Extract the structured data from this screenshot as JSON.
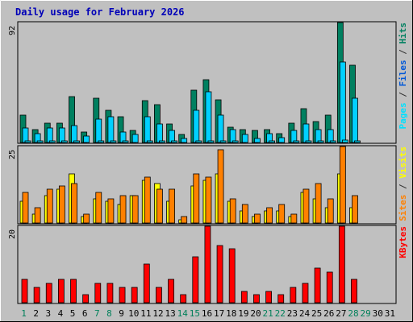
{
  "chart_data": {
    "type": "bar",
    "title": "Daily usage for February 2026",
    "categories": [
      "1",
      "2",
      "3",
      "4",
      "5",
      "6",
      "7",
      "8",
      "9",
      "10",
      "11",
      "12",
      "13",
      "14",
      "15",
      "16",
      "17",
      "18",
      "19",
      "20",
      "21",
      "22",
      "23",
      "24",
      "25",
      "26",
      "27",
      "28",
      "29",
      "30",
      "31"
    ],
    "weekend_days": [
      "1",
      "7",
      "8",
      "14",
      "15",
      "21",
      "22",
      "28",
      "29"
    ],
    "panels": [
      {
        "id": "hits",
        "ymax": 92,
        "ymax_label": "92",
        "axis_labels": [
          {
            "text": "Pages",
            "color": "#00e0ff"
          },
          {
            "text": " / ",
            "color": "#303030"
          },
          {
            "text": "Files",
            "color": "#0058d8"
          },
          {
            "text": " / ",
            "color": "#303030"
          },
          {
            "text": "Hits",
            "color": "#008060"
          }
        ],
        "series": [
          {
            "name": "Hits",
            "color": "#008060",
            "values": [
              21,
              10,
              15,
              15,
              35,
              8,
              34,
              25,
              20,
              9,
              32,
              29,
              14,
              6,
              40,
              48,
              33,
              12,
              10,
              9,
              10,
              7,
              15,
              26,
              16,
              21,
              92,
              59,
              0,
              0,
              0
            ]
          },
          {
            "name": "Files",
            "color": "#00d0ff",
            "values": [
              11,
              7,
              11,
              11,
              13,
              5,
              18,
              20,
              8,
              6,
              20,
              14,
              9,
              3,
              25,
              39,
              21,
              10,
              6,
              3,
              7,
              4,
              9,
              14,
              10,
              10,
              62,
              34,
              0,
              0,
              0
            ]
          },
          {
            "name": "Pages",
            "color": "#00e0ff",
            "values": [
              1,
              1,
              1,
              1,
              1,
              0,
              1,
              1,
              1,
              0,
              1,
              1,
              1,
              0,
              1,
              1,
              1,
              1,
              0,
              0,
              1,
              0,
              1,
              1,
              1,
              1,
              2,
              1,
              0,
              0,
              0
            ]
          }
        ]
      },
      {
        "id": "visits",
        "ymax": 25,
        "ymax_label": "25",
        "axis_labels": [
          {
            "text": "Sites",
            "color": "#ff8000"
          },
          {
            "text": " / ",
            "color": "#303030"
          },
          {
            "text": "Visits",
            "color": "#ffff00"
          }
        ],
        "series": [
          {
            "name": "Visits",
            "color": "#ffff00",
            "values": [
              7,
              3,
              9,
              11,
              16,
              2,
              8,
              7,
              6,
              9,
              14,
              13,
              7,
              1,
              12,
              14,
              16,
              7,
              4,
              2,
              4,
              4,
              2,
              10,
              8,
              5,
              16,
              5,
              0,
              0,
              0
            ]
          },
          {
            "name": "Sites",
            "color": "#ff8000",
            "values": [
              10,
              5,
              11,
              12,
              13,
              3,
              10,
              8,
              9,
              9,
              15,
              11,
              11,
              2,
              16,
              15,
              24,
              8,
              6,
              3,
              5,
              6,
              3,
              11,
              13,
              8,
              25,
              9,
              0,
              0,
              0
            ]
          }
        ]
      },
      {
        "id": "kbytes",
        "ymax": 20,
        "ymax_label": "20",
        "axis_labels": [
          {
            "text": "KBytes",
            "color": "#ff0000"
          }
        ],
        "series": [
          {
            "name": "KBytes",
            "color": "#ff0000",
            "values": [
              6,
              4,
              5,
              6,
              6,
              2,
              5,
              5,
              4,
              4,
              10,
              4,
              6,
              2,
              12,
              20,
              15,
              14,
              3,
              2,
              3,
              2,
              4,
              5,
              9,
              8,
              20,
              6,
              0,
              0,
              0
            ]
          }
        ]
      }
    ]
  }
}
